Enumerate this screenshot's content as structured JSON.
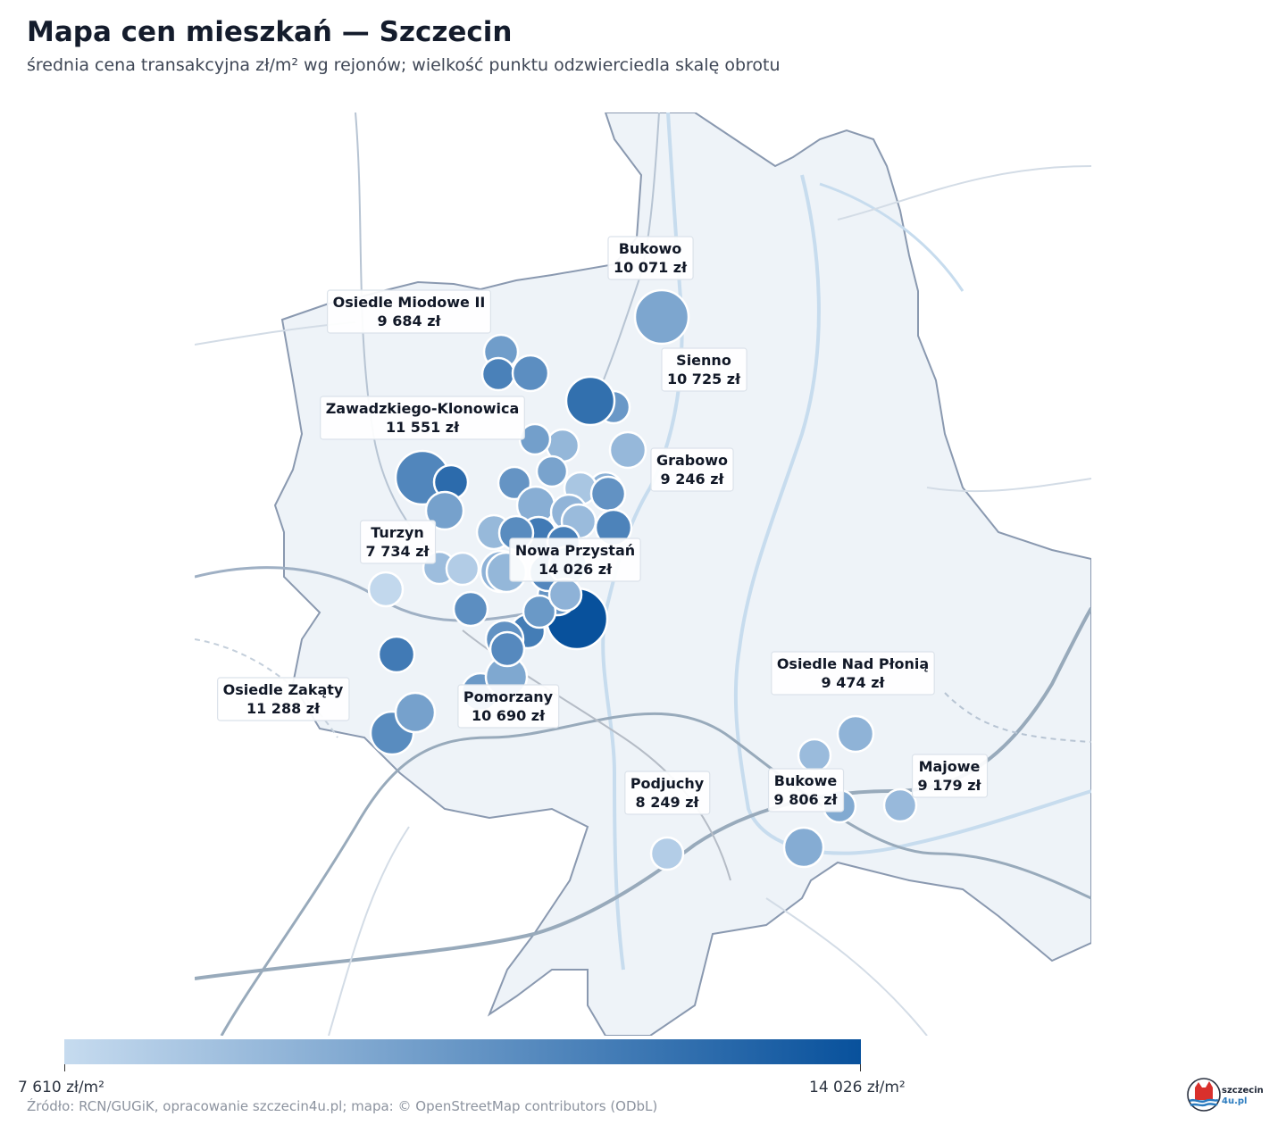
{
  "header": {
    "title": "Mapa cen mieszkań — Szczecin",
    "subtitle": "średnia cena transakcyjna zł/m² wg rejonów; wielkość punktu odzwierciedla skalę obrotu"
  },
  "legend": {
    "min_label": "7 610 zł/m²",
    "max_label": "14 026 zł/m²",
    "min_value": 7610,
    "max_value": 14026,
    "color_low": "#c6dbef",
    "color_high": "#08519c"
  },
  "footer": {
    "source": "Źródło: RCN/GUGiK, opracowanie szczecin4u.pl; mapa: © OpenStreetMap contributors (ODbL)"
  },
  "logo": {
    "line1": "szczecin",
    "line2": "4u.pl"
  },
  "districts": [
    {
      "name": "Bukowo",
      "price_label": "10 071 zł",
      "price": 10071
    },
    {
      "name": "Osiedle Miodowe II",
      "price_label": "9 684 zł",
      "price": 9684
    },
    {
      "name": "Sienno",
      "price_label": "10 725 zł",
      "price": 10725
    },
    {
      "name": "Zawadzkiego-Klonowica",
      "price_label": "11 551 zł",
      "price": 11551
    },
    {
      "name": "Grabowo",
      "price_label": "9 246 zł",
      "price": 9246
    },
    {
      "name": "Turzyn",
      "price_label": "7 734 zł",
      "price": 7734
    },
    {
      "name": "Nowa Przystań",
      "price_label": "14 026 zł",
      "price": 14026
    },
    {
      "name": "Osiedle Nad Płonią",
      "price_label": "9 474 zł",
      "price": 9474
    },
    {
      "name": "Osiedle Zakąty",
      "price_label": "11 288 zł",
      "price": 11288
    },
    {
      "name": "Pomorzany",
      "price_label": "10 690 zł",
      "price": 10690
    },
    {
      "name": "Majowe",
      "price_label": "9 179 zł",
      "price": 9179
    },
    {
      "name": "Podjuchy",
      "price_label": "8 249 zł",
      "price": 8249
    },
    {
      "name": "Bukowe",
      "price_label": "9 806 zł",
      "price": 9806
    }
  ],
  "markers": [
    {
      "price": 10071
    },
    {
      "price": 10725
    },
    {
      "price": 10500
    },
    {
      "price": 11800
    },
    {
      "price": 11200
    },
    {
      "price": 12600
    },
    {
      "price": 9300
    },
    {
      "price": 10400
    },
    {
      "price": 11551
    },
    {
      "price": 12800
    },
    {
      "price": 10300
    },
    {
      "price": 10900
    },
    {
      "price": 9246
    },
    {
      "price": 9600
    },
    {
      "price": 10200
    },
    {
      "price": 8600
    },
    {
      "price": 11000
    },
    {
      "price": 9700
    },
    {
      "price": 9400
    },
    {
      "price": 9100
    },
    {
      "price": 11700
    },
    {
      "price": 12100
    },
    {
      "price": 11900
    },
    {
      "price": 9200
    },
    {
      "price": 9000
    },
    {
      "price": 7734
    },
    {
      "price": 8300
    },
    {
      "price": 9500
    },
    {
      "price": 11300
    },
    {
      "price": 9300
    },
    {
      "price": 14026
    },
    {
      "price": 10900
    },
    {
      "price": 12000
    },
    {
      "price": 10700
    },
    {
      "price": 11500
    },
    {
      "price": 9800
    },
    {
      "price": 11200
    },
    {
      "price": 11000
    },
    {
      "price": 10690
    },
    {
      "price": 11288
    },
    {
      "price": 12100
    },
    {
      "price": 10300
    },
    {
      "price": 9474
    },
    {
      "price": 9100
    },
    {
      "price": 9179
    },
    {
      "price": 9806
    },
    {
      "price": 9900
    },
    {
      "price": 8249
    },
    {
      "price": 9500
    },
    {
      "price": 10000
    },
    {
      "price": 11400
    }
  ]
}
